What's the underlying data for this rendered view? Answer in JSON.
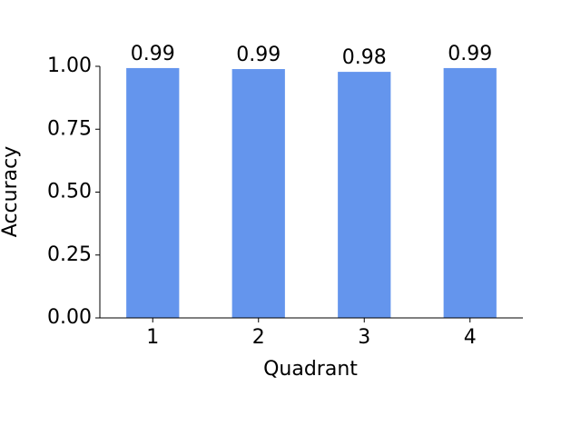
{
  "chart_data": {
    "type": "bar",
    "x_label": "Quadrant",
    "y_label": "Accuracy",
    "categories": [
      "1",
      "2",
      "3",
      "4"
    ],
    "values": [
      0.993,
      0.989,
      0.978,
      0.993
    ],
    "value_labels": [
      "0.99",
      "0.99",
      "0.98",
      "0.99"
    ],
    "color": "#6495ed",
    "ylim": [
      0,
      1
    ],
    "yticks": [
      {
        "value": 0,
        "label": "0.00"
      },
      {
        "value": 0.25,
        "label": "0.25"
      },
      {
        "value": 0.5,
        "label": "0.50"
      },
      {
        "value": 0.75,
        "label": "0.75"
      },
      {
        "value": 1,
        "label": "1.00"
      }
    ],
    "grid": false
  }
}
